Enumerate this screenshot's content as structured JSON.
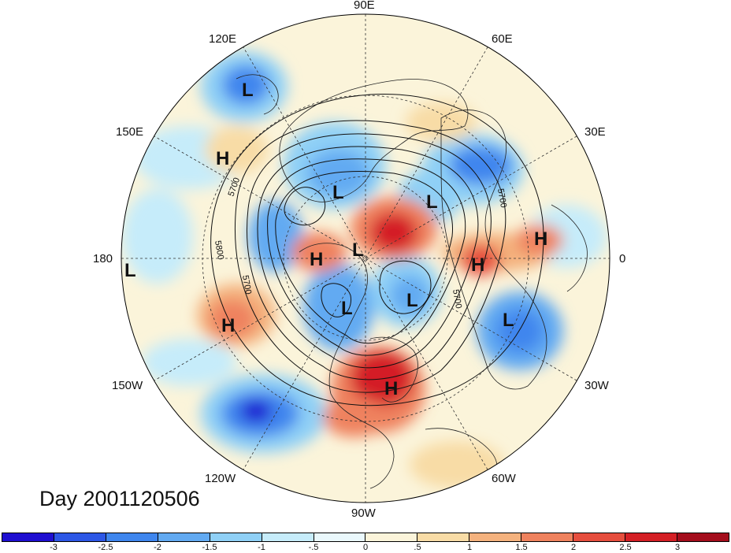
{
  "longitude_labels": {
    "lon_90e": "90E",
    "lon_60e": "60E",
    "lon_30e": "30E",
    "lon_0": "0",
    "lon_30w": "30W",
    "lon_60w": "60W",
    "lon_90w": "90W",
    "lon_120w": "120W",
    "lon_150w": "150W",
    "lon_180": "180",
    "lon_150e": "150E",
    "lon_120e": "120E"
  },
  "pressure_centers": [
    {
      "type": "L"
    },
    {
      "type": "H"
    },
    {
      "type": "L"
    },
    {
      "type": "L"
    },
    {
      "type": "H"
    },
    {
      "type": "L"
    },
    {
      "type": "H"
    },
    {
      "type": "H"
    },
    {
      "type": "L"
    },
    {
      "type": "H"
    },
    {
      "type": "L"
    },
    {
      "type": "L"
    },
    {
      "type": "L"
    },
    {
      "type": "H"
    }
  ],
  "contour_labels": [
    "5700",
    "5800",
    "5700",
    "5700",
    "5700"
  ],
  "day_label": "Day 2001120506",
  "colorbar": {
    "colors": [
      "#1f0fd1",
      "#2d57e6",
      "#3f86ee",
      "#62aaf2",
      "#8fd0f6",
      "#c6ecfa",
      "#eaf8fc",
      "#fbf4da",
      "#f8dca6",
      "#f4b27e",
      "#ef825e",
      "#e64e3e",
      "#d41f25",
      "#a40d1c"
    ],
    "ticks": [
      "-3",
      "-2.5",
      "-2",
      "-1.5",
      "-1",
      "-.5",
      "0",
      ".5",
      "1",
      "1.5",
      "2",
      "2.5",
      "3"
    ]
  }
}
